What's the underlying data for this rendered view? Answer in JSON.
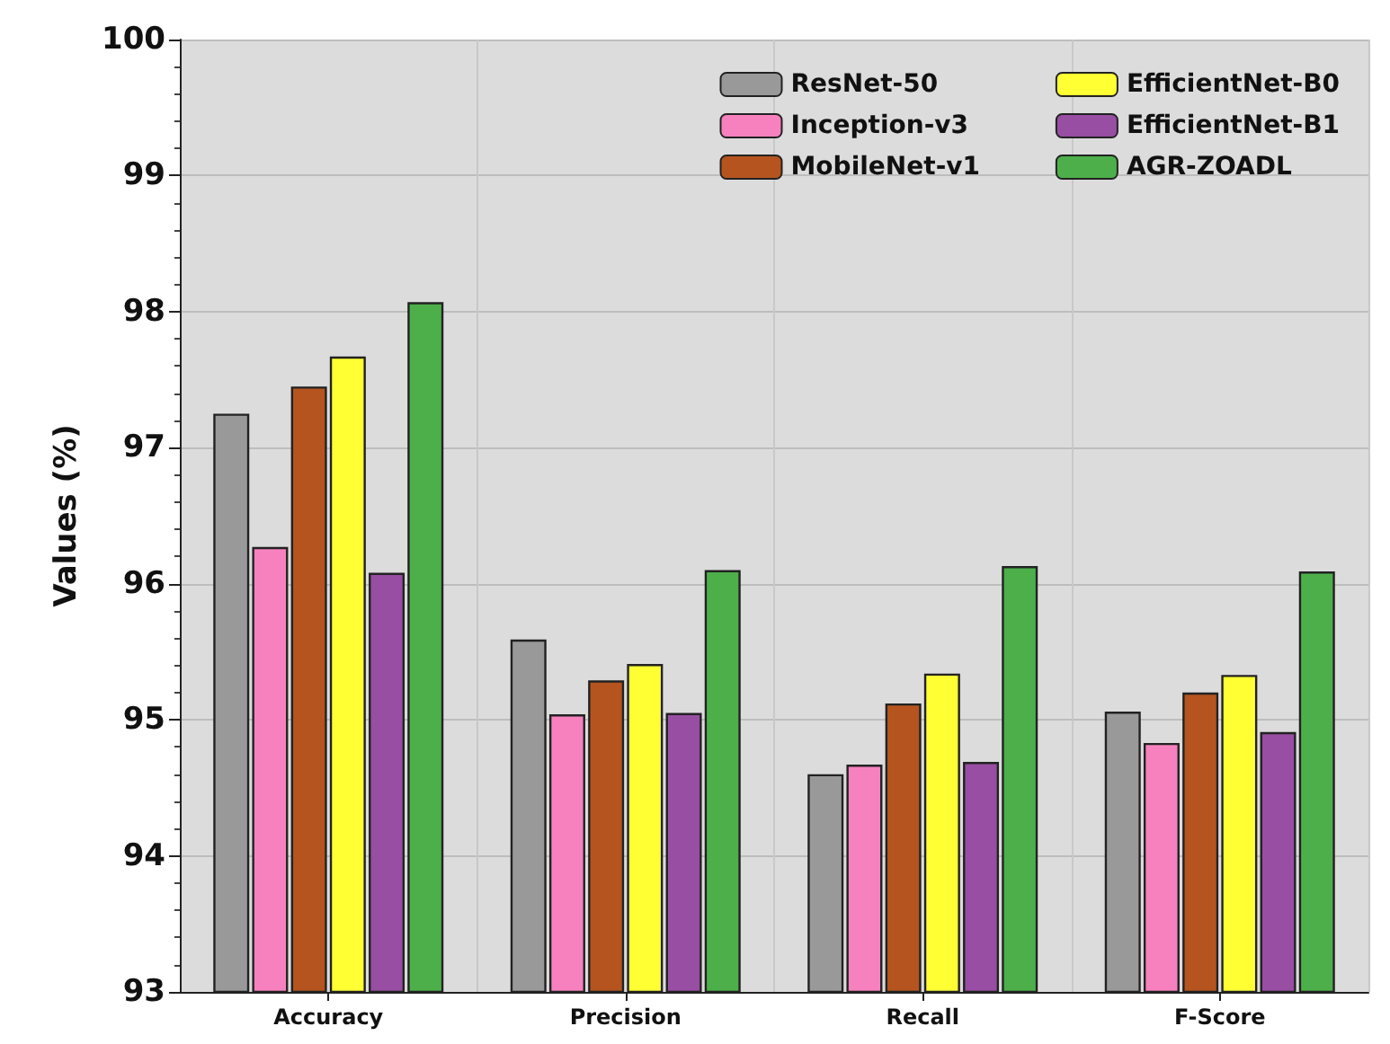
{
  "chart_data": {
    "type": "bar",
    "ylabel": "Values (%)",
    "categories": [
      "Accuracy",
      "Precision",
      "Recall",
      "F-Score"
    ],
    "series": [
      {
        "name": "ResNet-50",
        "color": "#999999",
        "values": [
          97.25,
          95.59,
          94.6,
          95.06
        ]
      },
      {
        "name": "Inception-v3",
        "color": "#f781bf",
        "values": [
          96.27,
          95.04,
          94.67,
          94.83
        ]
      },
      {
        "name": "MobileNet-v1",
        "color": "#b5541f",
        "values": [
          97.45,
          95.29,
          95.12,
          95.2
        ]
      },
      {
        "name": "EfficientNet-B0",
        "color": "#ffff33",
        "values": [
          97.67,
          95.41,
          95.34,
          95.33
        ]
      },
      {
        "name": "EfficientNet-B1",
        "color": "#984ea3",
        "values": [
          96.08,
          95.05,
          94.69,
          94.91
        ]
      },
      {
        "name": "AGR-ZOADL",
        "color": "#4daf4a",
        "values": [
          98.07,
          96.1,
          96.13,
          96.09
        ]
      }
    ],
    "ylim": [
      93,
      100
    ],
    "yticks": [
      93,
      94,
      95,
      96,
      97,
      98,
      99,
      100
    ],
    "grid": true,
    "legend": "top right"
  }
}
